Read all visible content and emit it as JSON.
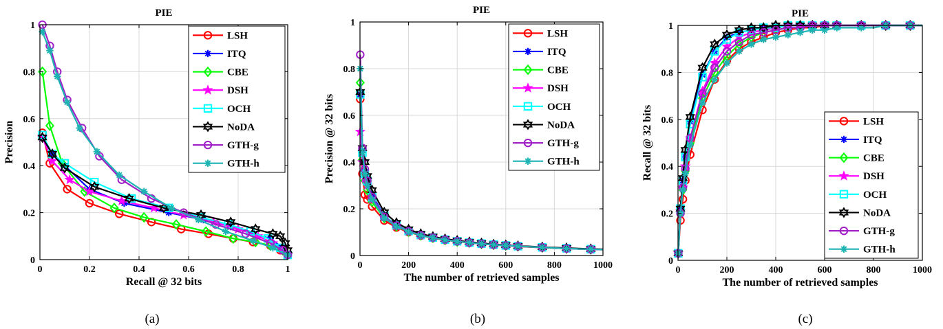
{
  "captions": [
    "(a)",
    "(b)",
    "(c)"
  ],
  "colors": {
    "LSH": "#ff0000",
    "ITQ": "#0000ff",
    "CBE": "#00ff00",
    "DSH": "#ff00ff",
    "OCH": "#00ffff",
    "NoDA": "#000000",
    "GTH-g": "#a020c8",
    "GTH-h": "#1eb4b4"
  },
  "markers": {
    "LSH": "circle",
    "ITQ": "asterisk",
    "CBE": "diamond",
    "DSH": "star",
    "OCH": "square",
    "NoDA": "hexagram",
    "GTH-g": "circle",
    "GTH-h": "asterisk"
  },
  "chart_data": [
    {
      "type": "line",
      "title": "PIE",
      "xlabel": "Recall @ 32 bits",
      "ylabel": "Precision",
      "xlim": [
        0,
        1
      ],
      "ylim": [
        0,
        1
      ],
      "xticks": [
        0,
        0.2,
        0.4,
        0.6,
        0.8,
        1
      ],
      "yticks": [
        0,
        0.2,
        0.4,
        0.6,
        0.8,
        1
      ],
      "xtick_labels": [
        "0",
        "0.2",
        "0.4",
        "0.6",
        "0.8",
        "1"
      ],
      "ytick_labels": [
        "0",
        "0.2",
        "0.4",
        "0.6",
        "0.8",
        "1"
      ],
      "grid": true,
      "legend_position": "top-right",
      "series": [
        {
          "name": "LSH",
          "x": [
            0.01,
            0.04,
            0.11,
            0.2,
            0.32,
            0.45,
            0.57,
            0.68,
            0.78,
            0.86,
            0.93,
            0.97,
            1.0
          ],
          "y": [
            0.54,
            0.41,
            0.3,
            0.24,
            0.195,
            0.16,
            0.13,
            0.11,
            0.09,
            0.075,
            0.06,
            0.04,
            0.02
          ]
        },
        {
          "name": "ITQ",
          "x": [
            0.01,
            0.05,
            0.1,
            0.2,
            0.34,
            0.52,
            0.66,
            0.77,
            0.86,
            0.93,
            0.98,
            1.0
          ],
          "y": [
            0.52,
            0.45,
            0.4,
            0.3,
            0.24,
            0.2,
            0.17,
            0.14,
            0.11,
            0.09,
            0.05,
            0.02
          ]
        },
        {
          "name": "CBE",
          "x": [
            0.01,
            0.04,
            0.09,
            0.18,
            0.3,
            0.42,
            0.55,
            0.67,
            0.78,
            0.87,
            0.93,
            0.98,
            1.0
          ],
          "y": [
            0.8,
            0.57,
            0.41,
            0.29,
            0.22,
            0.18,
            0.15,
            0.12,
            0.09,
            0.075,
            0.06,
            0.04,
            0.02
          ]
        },
        {
          "name": "DSH",
          "x": [
            0.01,
            0.05,
            0.12,
            0.2,
            0.33,
            0.46,
            0.58,
            0.7,
            0.8,
            0.88,
            0.94,
            0.98,
            1.0
          ],
          "y": [
            0.52,
            0.42,
            0.34,
            0.29,
            0.25,
            0.22,
            0.19,
            0.16,
            0.13,
            0.1,
            0.07,
            0.04,
            0.02
          ]
        },
        {
          "name": "OCH",
          "x": [
            0.01,
            0.05,
            0.1,
            0.22,
            0.37,
            0.52,
            0.65,
            0.76,
            0.85,
            0.92,
            0.97,
            1.0
          ],
          "y": [
            0.53,
            0.45,
            0.41,
            0.33,
            0.26,
            0.22,
            0.18,
            0.15,
            0.12,
            0.09,
            0.05,
            0.02
          ]
        },
        {
          "name": "NoDA",
          "x": [
            0.01,
            0.05,
            0.1,
            0.22,
            0.36,
            0.5,
            0.65,
            0.77,
            0.87,
            0.94,
            0.97,
            0.99,
            1.0
          ],
          "y": [
            0.52,
            0.45,
            0.39,
            0.31,
            0.26,
            0.22,
            0.19,
            0.16,
            0.13,
            0.11,
            0.1,
            0.07,
            0.04
          ]
        },
        {
          "name": "GTH-g",
          "x": [
            0.01,
            0.04,
            0.07,
            0.11,
            0.17,
            0.24,
            0.33,
            0.45,
            0.58,
            0.71,
            0.83,
            0.93,
            0.98,
            1.0
          ],
          "y": [
            1.0,
            0.91,
            0.8,
            0.68,
            0.56,
            0.44,
            0.34,
            0.26,
            0.2,
            0.15,
            0.11,
            0.07,
            0.04,
            0.02
          ]
        },
        {
          "name": "GTH-h",
          "x": [
            0.01,
            0.04,
            0.07,
            0.11,
            0.16,
            0.23,
            0.32,
            0.42,
            0.53,
            0.64,
            0.75,
            0.86,
            0.94,
            1.0
          ],
          "y": [
            0.97,
            0.89,
            0.78,
            0.67,
            0.56,
            0.46,
            0.36,
            0.29,
            0.22,
            0.17,
            0.12,
            0.08,
            0.05,
            0.02
          ]
        }
      ]
    },
    {
      "type": "line",
      "title": "PIE",
      "xlabel": "The number of retrieved samples",
      "ylabel": "Precision @ 32 bits",
      "xlim": [
        0,
        1000
      ],
      "ylim": [
        0,
        1
      ],
      "xticks": [
        0,
        200,
        400,
        600,
        800,
        1000
      ],
      "yticks": [
        0,
        0.2,
        0.4,
        0.6,
        0.8,
        1
      ],
      "xtick_labels": [
        "0",
        "200",
        "400",
        "600",
        "800",
        "1000"
      ],
      "ytick_labels": [
        "0",
        "0.2",
        "0.4",
        "0.6",
        "0.8",
        "1"
      ],
      "grid": true,
      "legend_position": "top-right",
      "x": [
        1,
        10,
        20,
        30,
        50,
        100,
        150,
        200,
        250,
        300,
        350,
        400,
        450,
        500,
        550,
        600,
        650,
        700,
        750,
        800,
        850,
        900,
        950,
        1000
      ],
      "series": [
        {
          "name": "LSH",
          "values": [
            0.67,
            0.35,
            0.26,
            0.24,
            0.21,
            0.15,
            0.12,
            0.1,
            0.085,
            0.075,
            0.066,
            0.06,
            0.054,
            0.05,
            0.046,
            0.042,
            0.039,
            0.036,
            0.034,
            0.032,
            0.03,
            0.028,
            0.026,
            0.025
          ]
        },
        {
          "name": "ITQ",
          "values": [
            0.69,
            0.45,
            0.36,
            0.33,
            0.26,
            0.17,
            0.13,
            0.105,
            0.088,
            0.077,
            0.068,
            0.061,
            0.056,
            0.051,
            0.047,
            0.043,
            0.04,
            0.037,
            0.035,
            0.033,
            0.031,
            0.029,
            0.027,
            0.026
          ]
        },
        {
          "name": "CBE",
          "values": [
            0.74,
            0.41,
            0.32,
            0.28,
            0.23,
            0.16,
            0.125,
            0.102,
            0.086,
            0.076,
            0.067,
            0.06,
            0.055,
            0.05,
            0.046,
            0.043,
            0.04,
            0.037,
            0.035,
            0.032,
            0.03,
            0.028,
            0.027,
            0.025
          ]
        },
        {
          "name": "DSH",
          "values": [
            0.53,
            0.4,
            0.33,
            0.3,
            0.24,
            0.165,
            0.128,
            0.104,
            0.087,
            0.077,
            0.068,
            0.061,
            0.055,
            0.05,
            0.046,
            0.043,
            0.04,
            0.037,
            0.035,
            0.032,
            0.03,
            0.028,
            0.027,
            0.025
          ]
        },
        {
          "name": "OCH",
          "values": [
            0.69,
            0.44,
            0.35,
            0.32,
            0.25,
            0.17,
            0.13,
            0.105,
            0.088,
            0.077,
            0.068,
            0.061,
            0.055,
            0.051,
            0.047,
            0.043,
            0.04,
            0.037,
            0.035,
            0.033,
            0.031,
            0.029,
            0.027,
            0.026
          ]
        },
        {
          "name": "NoDA",
          "values": [
            0.7,
            0.46,
            0.4,
            0.34,
            0.28,
            0.185,
            0.14,
            0.112,
            0.093,
            0.081,
            0.071,
            0.064,
            0.058,
            0.053,
            0.048,
            0.045,
            0.041,
            0.039,
            0.036,
            0.034,
            0.032,
            0.03,
            0.028,
            0.027
          ]
        },
        {
          "name": "GTH-g",
          "values": [
            0.86,
            0.46,
            0.37,
            0.32,
            0.25,
            0.165,
            0.128,
            0.104,
            0.087,
            0.077,
            0.068,
            0.061,
            0.055,
            0.05,
            0.046,
            0.043,
            0.04,
            0.037,
            0.035,
            0.032,
            0.03,
            0.028,
            0.027,
            0.025
          ]
        },
        {
          "name": "GTH-h",
          "values": [
            0.8,
            0.44,
            0.35,
            0.3,
            0.24,
            0.16,
            0.125,
            0.102,
            0.086,
            0.076,
            0.067,
            0.06,
            0.055,
            0.05,
            0.046,
            0.043,
            0.04,
            0.037,
            0.035,
            0.032,
            0.03,
            0.028,
            0.027,
            0.025
          ]
        }
      ]
    },
    {
      "type": "line",
      "title": "PIE",
      "xlabel": "The number of retrieved samples",
      "ylabel": "Recall @ 32 bits",
      "xlim": [
        0,
        1000
      ],
      "ylim": [
        0,
        1
      ],
      "xticks": [
        0,
        200,
        400,
        600,
        800,
        1000
      ],
      "yticks": [
        0,
        0.2,
        0.4,
        0.6,
        0.8,
        1
      ],
      "xtick_labels": [
        "0",
        "200",
        "400",
        "600",
        "800",
        "1000"
      ],
      "ytick_labels": [
        "0",
        "0.2",
        "0.4",
        "0.6",
        "0.8",
        "1"
      ],
      "grid": true,
      "legend_position": "bottom-right",
      "x": [
        1,
        10,
        20,
        30,
        50,
        100,
        150,
        200,
        250,
        300,
        350,
        400,
        450,
        500,
        550,
        600,
        650,
        700,
        750,
        800,
        850,
        900,
        950,
        1000
      ],
      "series": [
        {
          "name": "LSH",
          "values": [
            0.03,
            0.17,
            0.26,
            0.34,
            0.45,
            0.64,
            0.77,
            0.85,
            0.9,
            0.93,
            0.95,
            0.97,
            0.98,
            0.99,
            0.99,
            1.0,
            1.0,
            1.0,
            1.0,
            1.0,
            1.0,
            1.0,
            1.0,
            1.0
          ]
        },
        {
          "name": "ITQ",
          "values": [
            0.03,
            0.22,
            0.34,
            0.44,
            0.59,
            0.79,
            0.89,
            0.95,
            0.97,
            0.98,
            0.99,
            0.99,
            1.0,
            1.0,
            1.0,
            1.0,
            1.0,
            1.0,
            1.0,
            1.0,
            1.0,
            1.0,
            1.0,
            1.0
          ]
        },
        {
          "name": "CBE",
          "values": [
            0.03,
            0.2,
            0.3,
            0.38,
            0.5,
            0.69,
            0.8,
            0.87,
            0.92,
            0.95,
            0.97,
            0.98,
            0.99,
            0.99,
            1.0,
            1.0,
            1.0,
            1.0,
            1.0,
            1.0,
            1.0,
            1.0,
            1.0,
            1.0
          ]
        },
        {
          "name": "DSH",
          "values": [
            0.03,
            0.21,
            0.31,
            0.4,
            0.52,
            0.72,
            0.84,
            0.91,
            0.95,
            0.97,
            0.98,
            0.99,
            1.0,
            1.0,
            1.0,
            1.0,
            1.0,
            1.0,
            1.0,
            1.0,
            1.0,
            1.0,
            1.0,
            1.0
          ]
        },
        {
          "name": "OCH",
          "values": [
            0.03,
            0.22,
            0.34,
            0.44,
            0.58,
            0.78,
            0.89,
            0.94,
            0.97,
            0.98,
            0.99,
            0.99,
            1.0,
            1.0,
            1.0,
            1.0,
            1.0,
            1.0,
            1.0,
            1.0,
            1.0,
            1.0,
            1.0,
            1.0
          ]
        },
        {
          "name": "NoDA",
          "values": [
            0.03,
            0.22,
            0.35,
            0.47,
            0.61,
            0.82,
            0.92,
            0.96,
            0.98,
            0.99,
            0.99,
            1.0,
            1.0,
            1.0,
            1.0,
            1.0,
            1.0,
            1.0,
            1.0,
            1.0,
            1.0,
            1.0,
            1.0,
            1.0
          ]
        },
        {
          "name": "GTH-g",
          "values": [
            0.03,
            0.2,
            0.31,
            0.39,
            0.52,
            0.71,
            0.82,
            0.89,
            0.93,
            0.96,
            0.97,
            0.98,
            0.99,
            0.99,
            1.0,
            1.0,
            1.0,
            1.0,
            1.0,
            1.0,
            1.0,
            1.0,
            1.0,
            1.0
          ]
        },
        {
          "name": "GTH-h",
          "values": [
            0.03,
            0.2,
            0.3,
            0.37,
            0.49,
            0.67,
            0.77,
            0.84,
            0.89,
            0.92,
            0.94,
            0.95,
            0.96,
            0.97,
            0.98,
            0.98,
            0.99,
            0.99,
            0.99,
            0.99,
            1.0,
            1.0,
            1.0,
            1.0
          ]
        }
      ]
    }
  ]
}
